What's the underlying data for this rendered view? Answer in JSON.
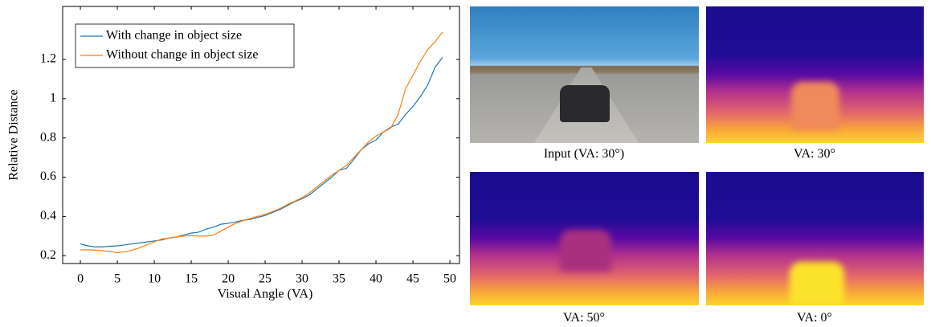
{
  "chart_data": {
    "type": "line",
    "x_label": "Visual Angle (VA)",
    "y_label": "Relative Distance",
    "x": [
      0,
      1,
      2,
      3,
      4,
      5,
      6,
      7,
      8,
      9,
      10,
      11,
      12,
      13,
      14,
      15,
      16,
      17,
      18,
      19,
      20,
      21,
      22,
      23,
      24,
      25,
      26,
      27,
      28,
      29,
      30,
      31,
      32,
      33,
      34,
      35,
      36,
      37,
      38,
      39,
      40,
      41,
      42,
      43,
      44,
      45,
      46,
      47,
      48,
      49
    ],
    "series": [
      {
        "name": "With change in object size",
        "color": "#1f77b4",
        "values": [
          0.26,
          0.25,
          0.245,
          0.245,
          0.248,
          0.25,
          0.255,
          0.26,
          0.265,
          0.27,
          0.275,
          0.28,
          0.29,
          0.295,
          0.305,
          0.315,
          0.32,
          0.335,
          0.345,
          0.36,
          0.365,
          0.372,
          0.38,
          0.385,
          0.395,
          0.405,
          0.42,
          0.435,
          0.455,
          0.475,
          0.49,
          0.51,
          0.54,
          0.57,
          0.6,
          0.635,
          0.645,
          0.69,
          0.74,
          0.77,
          0.79,
          0.83,
          0.855,
          0.87,
          0.92,
          0.96,
          1.01,
          1.07,
          1.16,
          1.21
        ]
      },
      {
        "name": "Without change in object size",
        "color": "#ff7f0e",
        "values": [
          0.23,
          0.23,
          0.228,
          0.225,
          0.222,
          0.215,
          0.22,
          0.228,
          0.24,
          0.255,
          0.27,
          0.285,
          0.29,
          0.295,
          0.3,
          0.302,
          0.3,
          0.3,
          0.305,
          0.325,
          0.345,
          0.365,
          0.378,
          0.39,
          0.4,
          0.41,
          0.425,
          0.44,
          0.46,
          0.478,
          0.495,
          0.52,
          0.55,
          0.58,
          0.61,
          0.635,
          0.66,
          0.7,
          0.74,
          0.78,
          0.81,
          0.83,
          0.85,
          0.92,
          1.05,
          1.12,
          1.19,
          1.25,
          1.29,
          1.34
        ]
      }
    ],
    "xlim": [
      -2.4,
      51.3
    ],
    "xticks": [
      0,
      5,
      10,
      15,
      20,
      25,
      30,
      35,
      40,
      45,
      50
    ],
    "ylim": [
      0.16,
      1.47
    ],
    "yticks": [
      0.2,
      0.4,
      0.6,
      0.8,
      1,
      1.2
    ],
    "legend": "top-left",
    "grid": false
  },
  "images": [
    {
      "caption": "Input (VA: 30°)"
    },
    {
      "caption": "VA: 30°"
    },
    {
      "caption": "VA: 50°"
    },
    {
      "caption": "VA: 0°"
    }
  ]
}
